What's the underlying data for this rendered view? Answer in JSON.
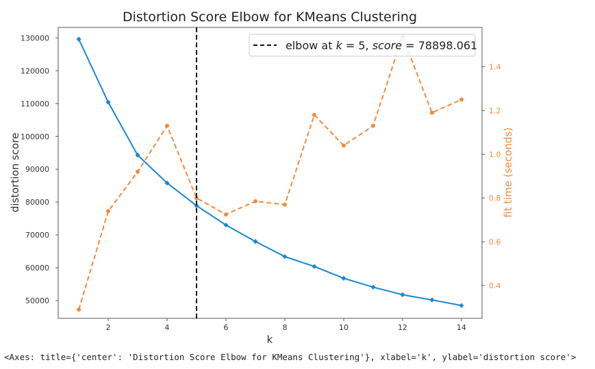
{
  "chart_data": {
    "type": "line",
    "title": "Distortion Score Elbow for KMeans Clustering",
    "xlabel": "k",
    "ylabel": "distortion score",
    "ylabel_right": "fit time (seconds)",
    "x": [
      1,
      2,
      3,
      4,
      5,
      6,
      7,
      8,
      9,
      10,
      11,
      12,
      13,
      14
    ],
    "xlim": [
      0.3,
      14.7
    ],
    "xticks": [
      2,
      4,
      6,
      8,
      10,
      12,
      14
    ],
    "ylim": [
      44600,
      133200
    ],
    "yticks": [
      50000,
      60000,
      70000,
      80000,
      90000,
      100000,
      110000,
      120000,
      130000
    ],
    "ylim_right": [
      0.25,
      1.58
    ],
    "yticks_right": [
      0.4,
      0.6,
      0.8,
      1.0,
      1.2,
      1.4
    ],
    "series": [
      {
        "axis": "left",
        "color": "#1a86d3",
        "style": "solid",
        "marker": "diamond",
        "values": [
          129600,
          110400,
          94300,
          85800,
          78898.061,
          73000,
          68000,
          63400,
          60400,
          56800,
          54100,
          51800,
          50200,
          48500
        ]
      },
      {
        "axis": "right",
        "color": "#f28b3c",
        "style": "dashed",
        "marker": "circle",
        "values": [
          0.29,
          0.74,
          0.92,
          1.13,
          0.8,
          0.725,
          0.785,
          0.77,
          1.18,
          1.04,
          1.13,
          1.54,
          1.19,
          1.25
        ]
      }
    ],
    "elbow": {
      "k": 5,
      "score": 78898.061,
      "legend_label_prefix": "elbow at ",
      "legend_label_k": "k",
      "legend_label_mid": " = 5, ",
      "legend_label_score": "score",
      "legend_label_suffix": " = 78898.061",
      "color": "#111111"
    },
    "legend_position": "top-right",
    "grid": false
  },
  "axes_repr": "<Axes: title={'center': 'Distortion Score Elbow for KMeans Clustering'}, xlabel='k', ylabel='distortion score'>",
  "colors": {
    "left_axis_label": "#333333",
    "right_axis_label": "#f28b3c",
    "spine": "#555555"
  }
}
